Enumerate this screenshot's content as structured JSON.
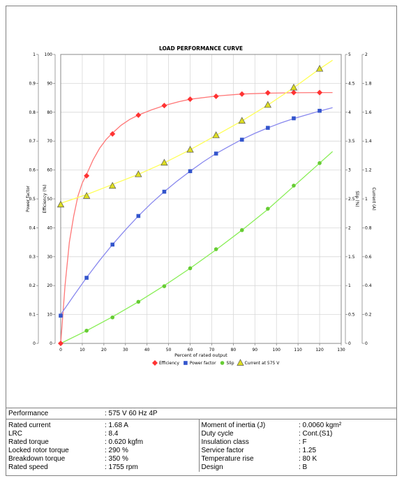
{
  "chart_data": {
    "type": "line",
    "title": "LOAD PERFORMANCE CURVE",
    "xlabel": "Percent of rated output",
    "xlim": [
      0,
      130
    ],
    "x_ticks": [
      "0",
      "10",
      "20",
      "30",
      "40",
      "50",
      "60",
      "70",
      "80",
      "90",
      "100",
      "110",
      "120",
      "130"
    ],
    "grid": true,
    "legend": "bottom",
    "axes": [
      {
        "label": "Power factor",
        "side": "left-outer",
        "ylim": [
          0,
          1
        ],
        "ticks": [
          "0",
          "0.1",
          "0.2",
          "0.3",
          "0.4",
          "0.5",
          "0.6",
          "0.7",
          "0.8",
          "0.9",
          "1"
        ]
      },
      {
        "label": "Efficiency (%)",
        "side": "left-inner",
        "ylim": [
          0,
          100
        ],
        "ticks": [
          "0",
          "10",
          "20",
          "30",
          "40",
          "50",
          "60",
          "70",
          "80",
          "90",
          "100"
        ]
      },
      {
        "label": "Slip (%)",
        "side": "right-inner",
        "ylim": [
          0,
          5
        ],
        "ticks": [
          "0",
          "0.5",
          "1",
          "1.5",
          "2",
          "2.5",
          "3",
          "3.5",
          "4",
          "4.5",
          "5"
        ]
      },
      {
        "label": "Current (A)",
        "side": "right-outer",
        "ylim": [
          0,
          2
        ],
        "ticks": [
          "0",
          "0.2",
          "0.4",
          "0.6",
          "0.8",
          "1",
          "1.2",
          "1.4",
          "1.6",
          "1.8",
          "2"
        ]
      }
    ],
    "series": [
      {
        "name": "Efficiency",
        "axis": "Efficiency (%)",
        "color": "#ff3333",
        "line_color": "#ff7777",
        "marker": "diamond",
        "x": [
          0,
          12,
          24,
          36,
          48,
          60,
          72,
          84,
          96,
          108,
          120
        ],
        "y": [
          0,
          58,
          72.5,
          79,
          82.3,
          84.5,
          85.5,
          86.3,
          86.7,
          86.8,
          86.8
        ],
        "curve_x": [
          0,
          2,
          4,
          6,
          8,
          10,
          12,
          15,
          18,
          21,
          24,
          28,
          32,
          36,
          42,
          48,
          55,
          60,
          72,
          84,
          96,
          108,
          120,
          126
        ],
        "curve_y": [
          0,
          20,
          35,
          44,
          51,
          55.5,
          58.5,
          63.5,
          67.5,
          70.5,
          72.8,
          75.5,
          77.5,
          79,
          80.8,
          82.3,
          83.7,
          84.5,
          85.6,
          86.3,
          86.6,
          86.75,
          86.8,
          86.8
        ]
      },
      {
        "name": "Power factor",
        "axis": "Power factor",
        "color": "#3355cc",
        "line_color": "#8888ee",
        "marker": "square",
        "x": [
          0,
          12,
          24,
          36,
          48,
          60,
          72,
          84,
          96,
          108,
          120
        ],
        "y": [
          0.096,
          0.227,
          0.342,
          0.441,
          0.525,
          0.596,
          0.657,
          0.705,
          0.746,
          0.779,
          0.805
        ],
        "curve_x": [
          0,
          6,
          12,
          18,
          24,
          30,
          36,
          42,
          48,
          54,
          60,
          66,
          72,
          78,
          84,
          90,
          96,
          102,
          108,
          114,
          120,
          126
        ],
        "curve_y": [
          0.1,
          0.165,
          0.228,
          0.287,
          0.342,
          0.393,
          0.441,
          0.485,
          0.525,
          0.562,
          0.596,
          0.628,
          0.657,
          0.682,
          0.706,
          0.727,
          0.746,
          0.763,
          0.778,
          0.791,
          0.804,
          0.816
        ]
      },
      {
        "name": "Slip",
        "axis": "Slip (%)",
        "color": "#66cc33",
        "line_color": "#88ee55",
        "marker": "circle",
        "x": [
          12,
          24,
          36,
          48,
          60,
          72,
          84,
          96,
          108,
          120
        ],
        "y": [
          0.22,
          0.45,
          0.72,
          0.99,
          1.3,
          1.63,
          1.96,
          2.33,
          2.73,
          3.12
        ],
        "curve_x": [
          0,
          12,
          24,
          36,
          48,
          60,
          72,
          84,
          96,
          108,
          120,
          126
        ],
        "curve_y": [
          0,
          0.22,
          0.46,
          0.72,
          1.0,
          1.3,
          1.62,
          1.96,
          2.32,
          2.72,
          3.12,
          3.32
        ]
      },
      {
        "name": "Current at 575 V",
        "axis": "Current (A)",
        "color": "#dddd22",
        "line_color": "#ffff55",
        "marker": "triangle",
        "x": [
          0,
          12,
          24,
          36,
          48,
          60,
          72,
          84,
          96,
          108,
          120
        ],
        "y": [
          0.96,
          1.02,
          1.09,
          1.17,
          1.25,
          1.34,
          1.44,
          1.54,
          1.65,
          1.77,
          1.9
        ],
        "curve_x": [
          0,
          12,
          24,
          36,
          48,
          60,
          72,
          84,
          96,
          108,
          120,
          126
        ],
        "curve_y": [
          0.97,
          1.03,
          1.1,
          1.17,
          1.25,
          1.34,
          1.44,
          1.54,
          1.65,
          1.77,
          1.9,
          1.96
        ]
      }
    ]
  },
  "performance": {
    "label": "Performance",
    "value": ": 575 V 60 Hz 4P"
  },
  "specs_left": [
    {
      "label": "Rated current",
      "value": ": 1.68 A"
    },
    {
      "label": "LRC",
      "value": ": 8.4"
    },
    {
      "label": "Rated torque",
      "value": ": 0.620 kgfm"
    },
    {
      "label": "Locked rotor torque",
      "value": ": 290 %"
    },
    {
      "label": "Breakdown torque",
      "value": ": 350 %"
    },
    {
      "label": "Rated speed",
      "value": ": 1755 rpm"
    }
  ],
  "specs_right": [
    {
      "label": "Moment of inertia (J)",
      "value": ": 0.0060 kgm²"
    },
    {
      "label": "Duty cycle",
      "value": ": Cont.(S1)"
    },
    {
      "label": "Insulation class",
      "value": ": F"
    },
    {
      "label": "Service factor",
      "value": ": 1.25"
    },
    {
      "label": "Temperature rise",
      "value": ": 80 K"
    },
    {
      "label": "Design",
      "value": ": B"
    }
  ]
}
